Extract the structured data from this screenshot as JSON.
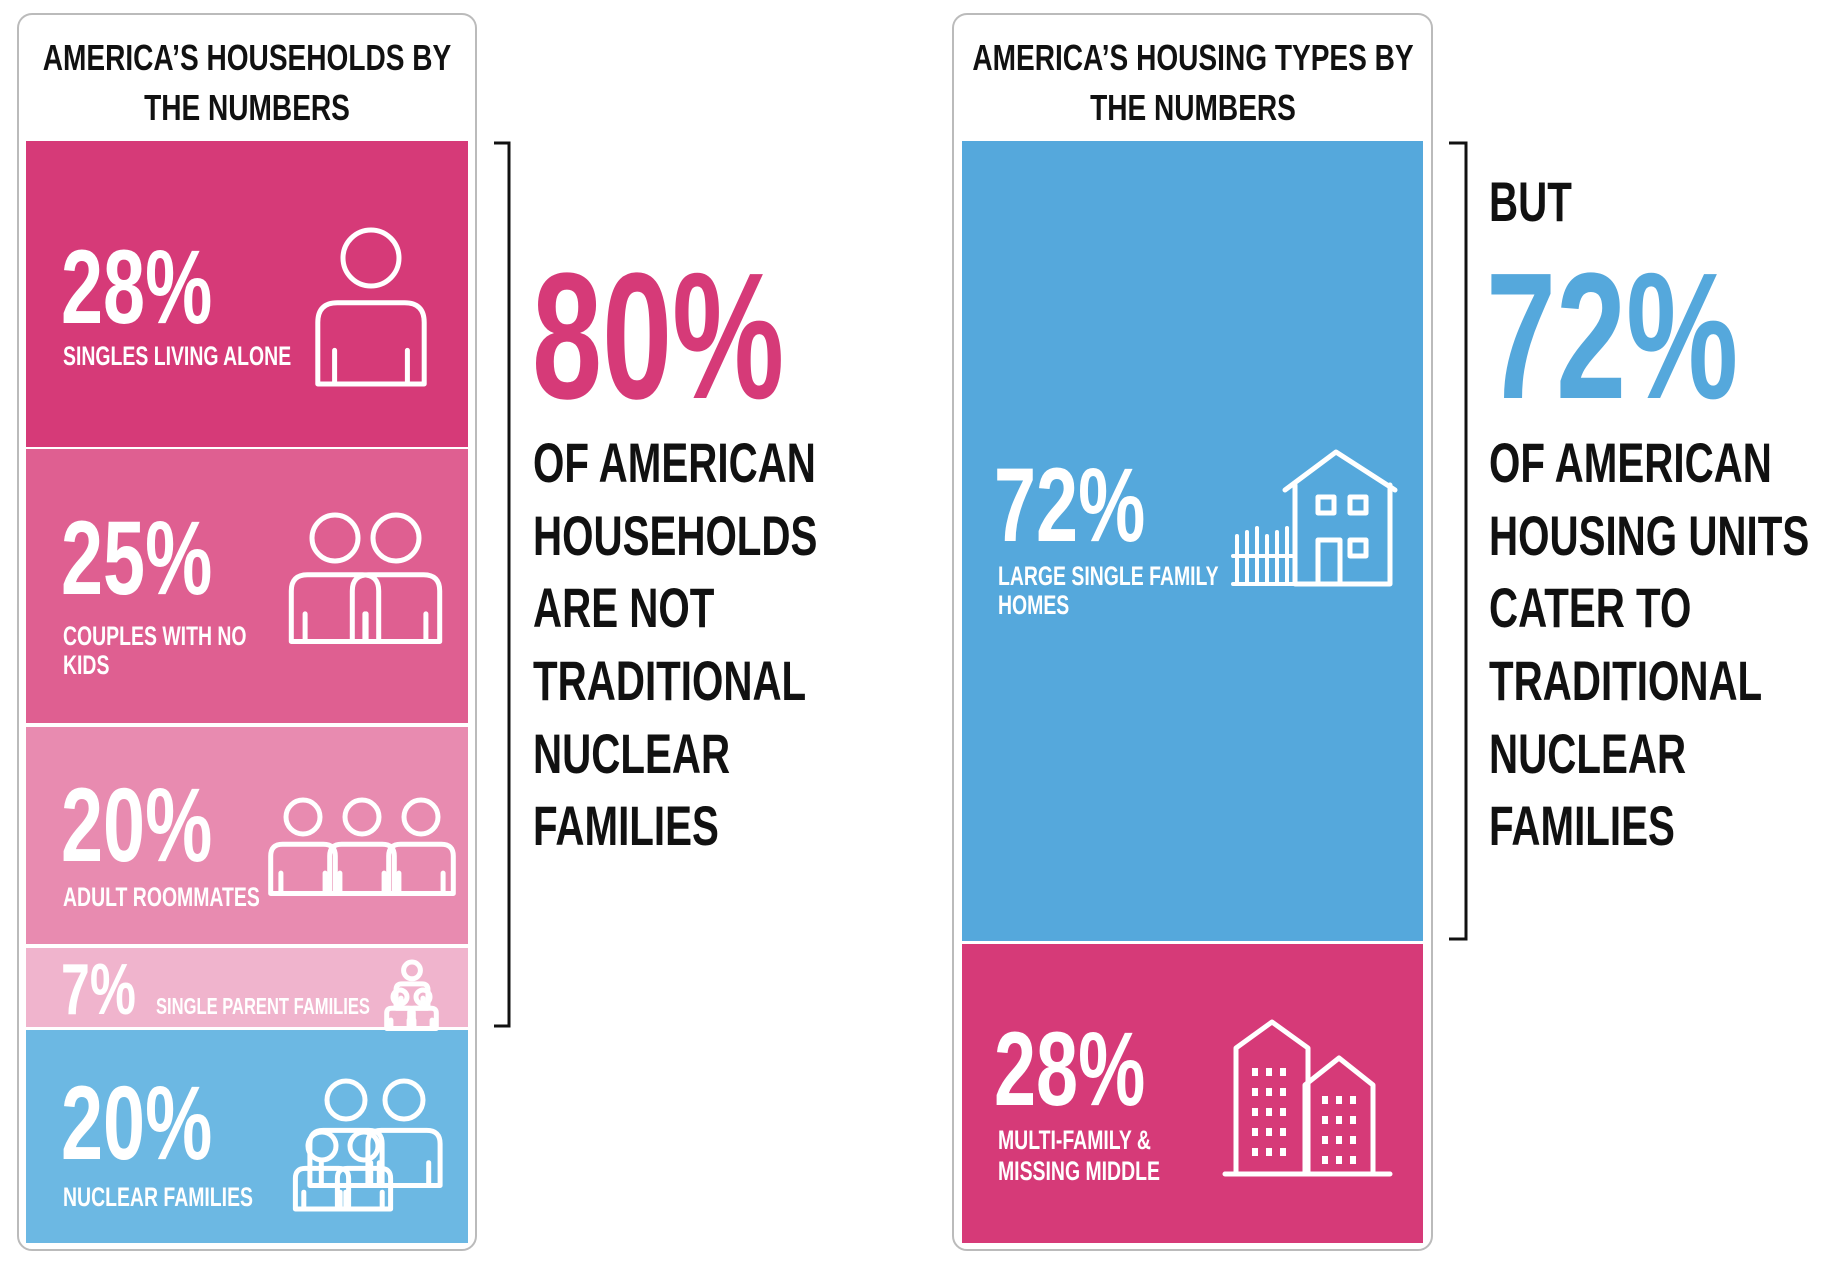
{
  "left_panel": {
    "title": [
      "AMERICA’S HOUSEHOLDS BY",
      "THE NUMBERS"
    ],
    "segments": [
      {
        "value": "28%",
        "label": [
          "SINGLES LIVING ALONE"
        ]
      },
      {
        "value": "25%",
        "label": [
          "COUPLES WITH NO",
          "KIDS"
        ]
      },
      {
        "value": "20%",
        "label": [
          "ADULT ROOMMATES"
        ]
      },
      {
        "value": "7%",
        "label": [
          "SINGLE PARENT FAMILIES"
        ]
      },
      {
        "value": "20%",
        "label": [
          "NUCLEAR FAMILIES"
        ]
      }
    ]
  },
  "left_callout": {
    "value": "80%",
    "lines": [
      "OF AMERICAN",
      "HOUSEHOLDS",
      "ARE NOT",
      "TRADITIONAL",
      "NUCLEAR",
      "FAMILIES"
    ]
  },
  "right_panel": {
    "title": [
      "AMERICA’S HOUSING TYPES BY",
      "THE NUMBERS"
    ],
    "segments": [
      {
        "value": "72%",
        "label": [
          "LARGE SINGLE FAMILY",
          "HOMES"
        ]
      },
      {
        "value": "28%",
        "label": [
          "MULTI-FAMILY &",
          "MISSING MIDDLE"
        ]
      }
    ]
  },
  "right_callout": {
    "lead": "BUT",
    "value": "72%",
    "lines": [
      "OF AMERICAN",
      "HOUSING UNITS",
      "CATER TO",
      "TRADITIONAL",
      "NUCLEAR",
      "FAMILIES"
    ]
  }
}
